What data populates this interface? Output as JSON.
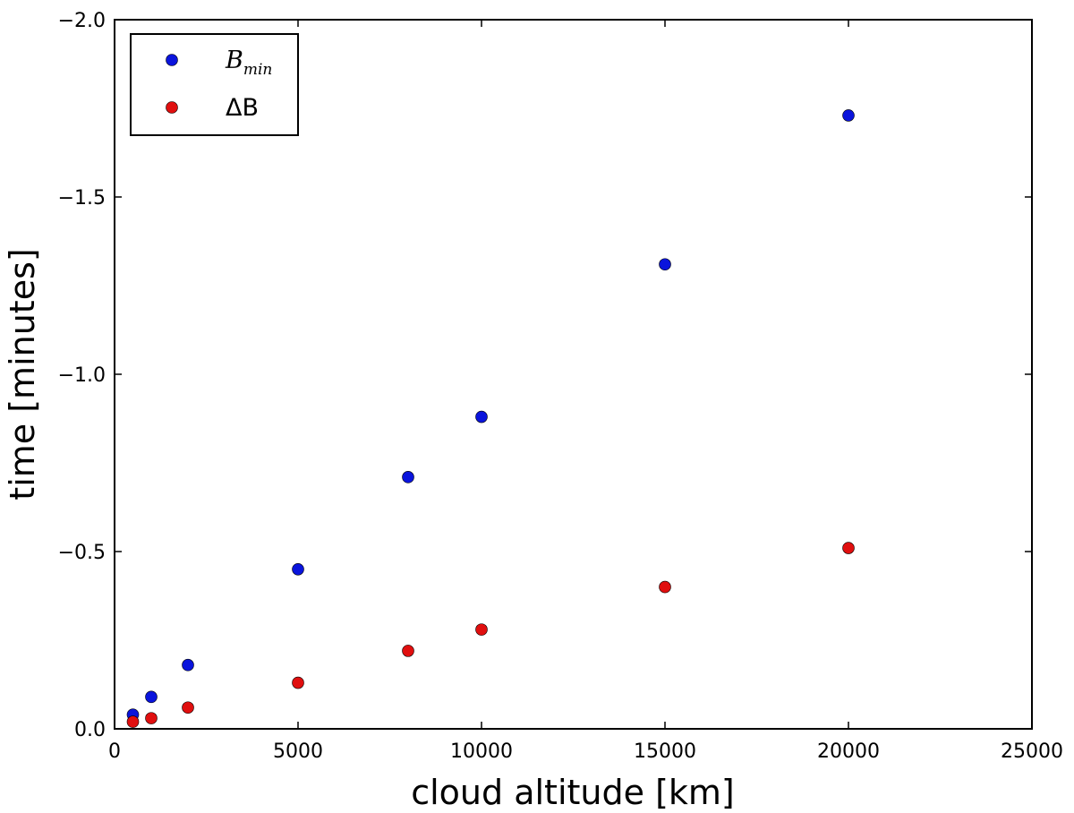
{
  "chart_data": {
    "type": "scatter",
    "xlabel": "cloud altitude [km]",
    "ylabel": "time [minutes]",
    "xlim": [
      0,
      25000
    ],
    "ylim": [
      0.0,
      -2.0
    ],
    "y_inverted": true,
    "x_ticks": [
      0,
      5000,
      10000,
      15000,
      20000,
      25000
    ],
    "x_tick_labels": [
      "0",
      "5000",
      "10000",
      "15000",
      "20000",
      "25000"
    ],
    "y_ticks": [
      0.0,
      -0.5,
      -1.0,
      -1.5,
      -2.0
    ],
    "y_tick_labels": [
      "0.0",
      "−0.5",
      "−1.0",
      "−1.5",
      "−2.0"
    ],
    "grid": false,
    "legend_position": "top-left",
    "series": [
      {
        "name": "B",
        "name_subscript": "min",
        "color": "#0a14dc",
        "points": [
          {
            "x": 500,
            "y": -0.04
          },
          {
            "x": 1000,
            "y": -0.09
          },
          {
            "x": 2000,
            "y": -0.18
          },
          {
            "x": 5000,
            "y": -0.45
          },
          {
            "x": 8000,
            "y": -0.71
          },
          {
            "x": 10000,
            "y": -0.88
          },
          {
            "x": 15000,
            "y": -1.31
          },
          {
            "x": 20000,
            "y": -1.73
          }
        ]
      },
      {
        "name": "ΔB",
        "name_subscript": "",
        "color": "#e00f0f",
        "points": [
          {
            "x": 500,
            "y": -0.02
          },
          {
            "x": 1000,
            "y": -0.03
          },
          {
            "x": 2000,
            "y": -0.06
          },
          {
            "x": 5000,
            "y": -0.13
          },
          {
            "x": 8000,
            "y": -0.22
          },
          {
            "x": 10000,
            "y": -0.28
          },
          {
            "x": 15000,
            "y": -0.4
          },
          {
            "x": 20000,
            "y": -0.51
          }
        ]
      }
    ]
  }
}
